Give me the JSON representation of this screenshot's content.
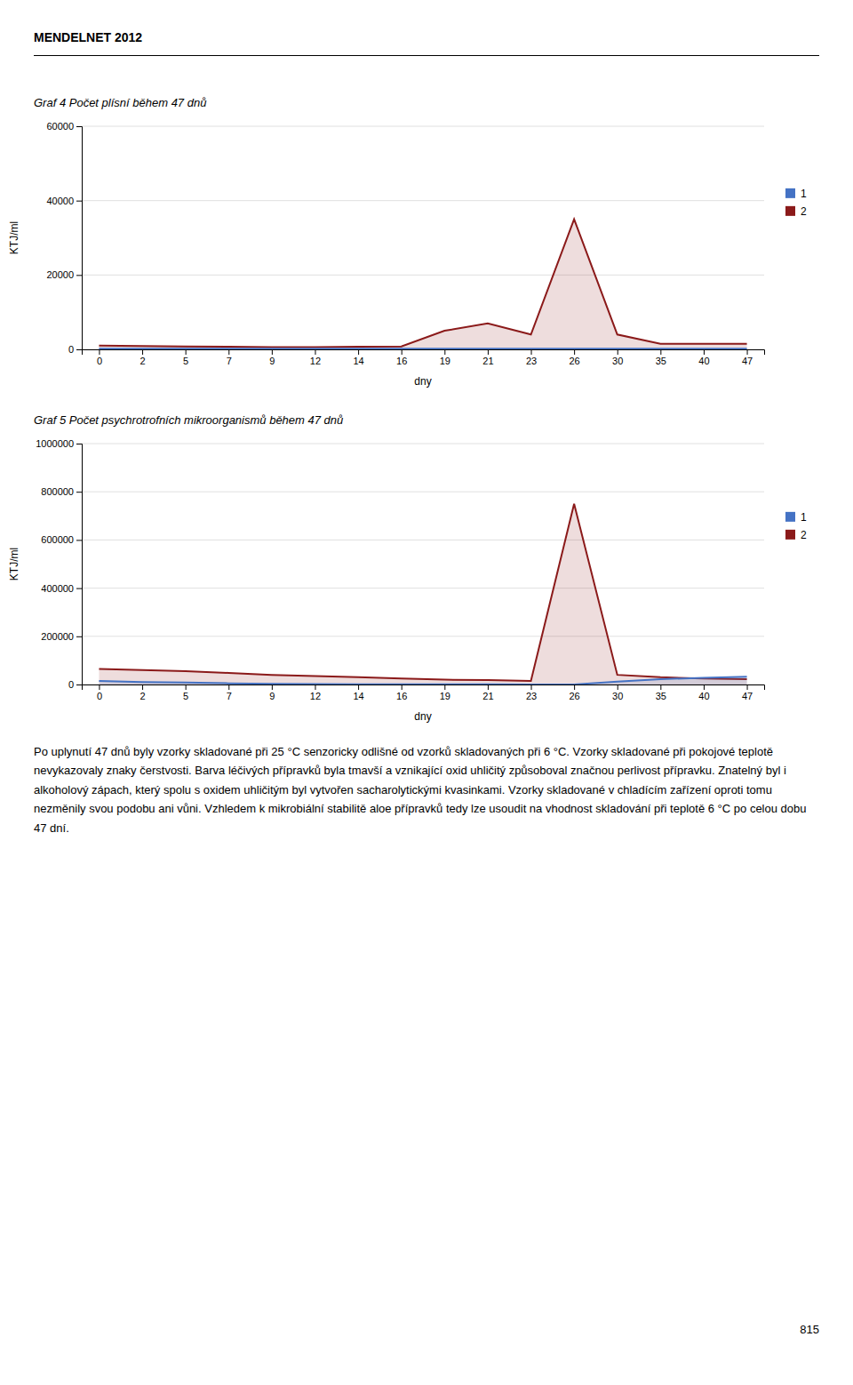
{
  "header": "MENDELNET 2012",
  "paragraph": "Po uplynutí 47 dnů byly vzorky skladované při 25 °C senzoricky odlišné od vzorků skladovaných při 6 °C. Vzorky skladované při pokojové teplotě nevykazovaly znaky čerstvosti. Barva léčivých přípravků byla tmavší a vznikající oxid uhličitý způsoboval značnou perlivost přípravku. Znatelný byl i alkoholový zápach, který spolu s oxidem uhličitým byl vytvořen sacharolytickými kvasinkami. Vzorky skladované v chladícím zařízení oproti tomu nezměnily svou podobu ani vůni. Vzhledem k mikrobiální stabilitě aloe přípravků tedy lze usoudit na vhodnost skladování při teplotě 6 °C po celou dobu 47 dní.",
  "page_number": "815",
  "chart_data": [
    {
      "type": "area",
      "title": "Graf 4 Počet plísní během 47 dnů",
      "x_label": "dny",
      "y_label": "KTJ/ml",
      "categories": [
        "0",
        "2",
        "5",
        "7",
        "9",
        "12",
        "14",
        "16",
        "19",
        "21",
        "23",
        "26",
        "30",
        "35",
        "40",
        "47"
      ],
      "series": [
        {
          "name": "1",
          "color": "#4472C4",
          "values": [
            200,
            200,
            150,
            150,
            150,
            150,
            150,
            150,
            150,
            150,
            150,
            150,
            150,
            150,
            150,
            150
          ]
        },
        {
          "name": "2",
          "color": "#8B1A1A",
          "values": [
            1000,
            900,
            800,
            700,
            600,
            600,
            700,
            800,
            5000,
            7000,
            4000,
            35000,
            4000,
            1500,
            1500,
            1500
          ]
        }
      ],
      "ylim": [
        0,
        60000
      ],
      "yticks": [
        0,
        20000,
        40000,
        60000
      ],
      "grid": true,
      "legend": "right"
    },
    {
      "type": "area",
      "title": "Graf 5 Počet psychrotrofních mikroorganismů během 47 dnů",
      "x_label": "dny",
      "y_label": "KTJ/ml",
      "categories": [
        "0",
        "2",
        "5",
        "7",
        "9",
        "12",
        "14",
        "16",
        "19",
        "21",
        "23",
        "26",
        "30",
        "35",
        "40",
        "47"
      ],
      "series": [
        {
          "name": "1",
          "color": "#4472C4",
          "values": [
            15000,
            10000,
            8000,
            5000,
            3000,
            2000,
            1000,
            800,
            600,
            500,
            400,
            300,
            12000,
            22000,
            28000,
            32000
          ]
        },
        {
          "name": "2",
          "color": "#8B1A1A",
          "values": [
            65000,
            60000,
            55000,
            48000,
            40000,
            35000,
            30000,
            25000,
            20000,
            18000,
            15000,
            750000,
            40000,
            30000,
            25000,
            22000
          ]
        }
      ],
      "ylim": [
        0,
        1000000
      ],
      "yticks": [
        0,
        200000,
        400000,
        600000,
        800000,
        1000000
      ],
      "grid": true,
      "legend": "right"
    }
  ]
}
